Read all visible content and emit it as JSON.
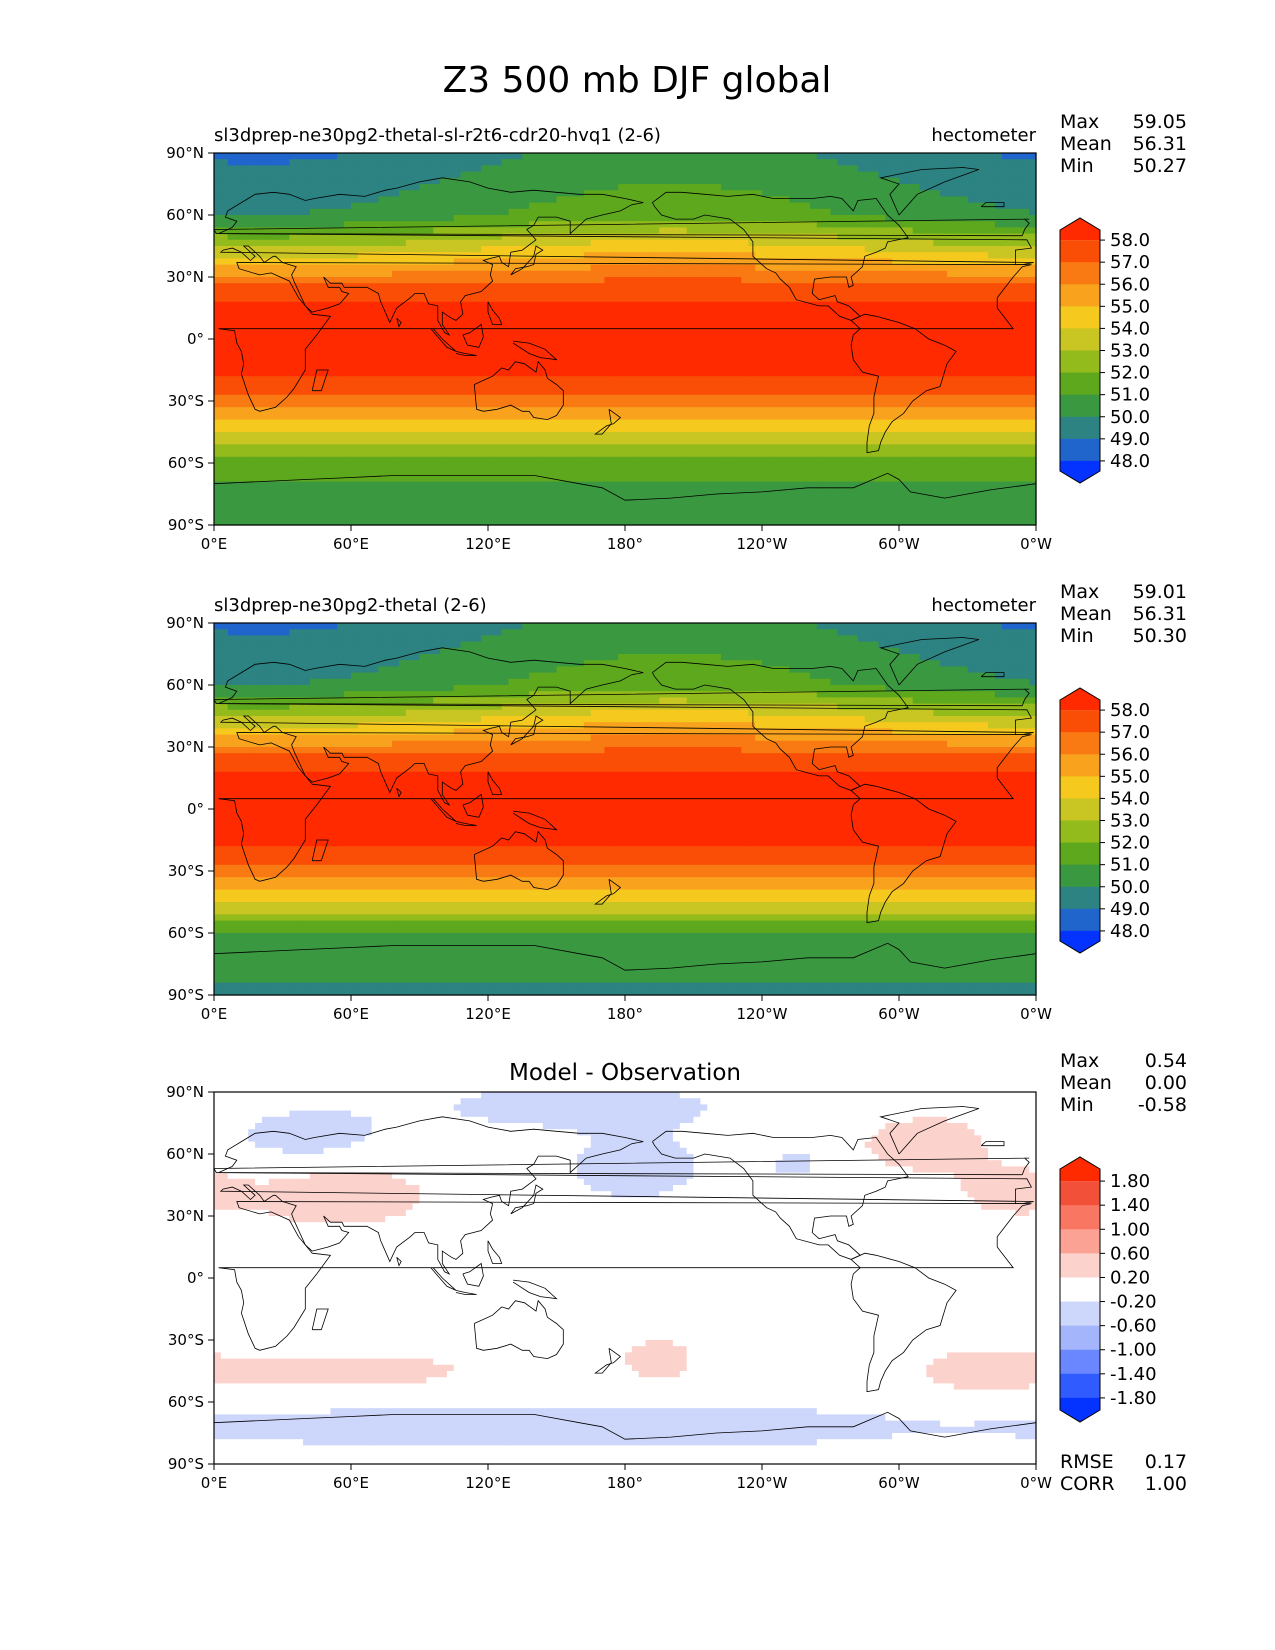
{
  "title": "Z3 500 mb DJF global",
  "colors": {
    "levels": [
      "#0433ff",
      "#1f65cc",
      "#2c8382",
      "#3a9840",
      "#5ea81e",
      "#92bb1b",
      "#c9c523",
      "#f5c91e",
      "#f8a21e",
      "#f97a12",
      "#fa4e06",
      "#ff2a00"
    ],
    "diff": [
      "#0433ff",
      "#2f5bff",
      "#6a87ff",
      "#a5b5fb",
      "#cdd6fb",
      "#ffffff",
      "#fcd2cd",
      "#fca295",
      "#f97663",
      "#f3503a",
      "#ff2a00"
    ],
    "land": "#000000"
  },
  "chart_data": [
    {
      "type": "heatmap",
      "name": "test",
      "label_left": "sl3dprep-ne30pg2-thetal-sl-r2t6-cdr20-hvq1 (2-6)",
      "label_right": "hectometer",
      "stats": [
        {
          "label": "Max",
          "value": "59.05"
        },
        {
          "label": "Mean",
          "value": "56.31"
        },
        {
          "label": "Min",
          "value": "50.27"
        }
      ],
      "colorbar_ticks": [
        "58.0",
        "57.0",
        "56.0",
        "55.0",
        "54.0",
        "53.0",
        "52.0",
        "51.0",
        "50.0",
        "49.0",
        "48.0"
      ],
      "levels": [
        48,
        49,
        50,
        51,
        52,
        53,
        54,
        55,
        56,
        57,
        58
      ],
      "x_ticks": [
        "0°E",
        "60°E",
        "120°E",
        "180°",
        "120°W",
        "60°W",
        "0°W"
      ],
      "y_ticks": [
        "90°N",
        "60°N",
        "30°N",
        "0°",
        "30°S",
        "60°S",
        "90°S"
      ],
      "xlim": [
        0,
        360
      ],
      "ylim": [
        -90,
        90
      ]
    },
    {
      "type": "heatmap",
      "name": "reference",
      "label_left": "sl3dprep-ne30pg2-thetal (2-6)",
      "label_right": "hectometer",
      "stats": [
        {
          "label": "Max",
          "value": "59.01"
        },
        {
          "label": "Mean",
          "value": "56.31"
        },
        {
          "label": "Min",
          "value": "50.30"
        }
      ],
      "colorbar_ticks": [
        "58.0",
        "57.0",
        "56.0",
        "55.0",
        "54.0",
        "53.0",
        "52.0",
        "51.0",
        "50.0",
        "49.0",
        "48.0"
      ],
      "levels": [
        48,
        49,
        50,
        51,
        52,
        53,
        54,
        55,
        56,
        57,
        58
      ],
      "x_ticks": [
        "0°E",
        "60°E",
        "120°E",
        "180°",
        "120°W",
        "60°W",
        "0°W"
      ],
      "y_ticks": [
        "90°N",
        "60°N",
        "30°N",
        "0°",
        "30°S",
        "60°S",
        "90°S"
      ],
      "xlim": [
        0,
        360
      ],
      "ylim": [
        -90,
        90
      ]
    },
    {
      "type": "heatmap",
      "name": "difference",
      "title": "Model - Observation",
      "stats": [
        {
          "label": "Max",
          "value": "0.54"
        },
        {
          "label": "Mean",
          "value": "0.00"
        },
        {
          "label": "Min",
          "value": "-0.58"
        }
      ],
      "colorbar_ticks": [
        "1.80",
        "1.40",
        "1.00",
        "0.60",
        "0.20",
        "-0.20",
        "-0.60",
        "-1.00",
        "-1.40",
        "-1.80"
      ],
      "levels": [
        -1.8,
        -1.4,
        -1.0,
        -0.6,
        -0.2,
        0.2,
        0.6,
        1.0,
        1.4,
        1.8
      ],
      "metrics": [
        {
          "label": "RMSE",
          "value": "0.17"
        },
        {
          "label": "CORR",
          "value": "1.00"
        }
      ],
      "x_ticks": [
        "0°E",
        "60°E",
        "120°E",
        "180°",
        "120°W",
        "60°W",
        "0°W"
      ],
      "y_ticks": [
        "90°N",
        "60°N",
        "30°N",
        "0°",
        "30°S",
        "60°S",
        "90°S"
      ],
      "xlim": [
        0,
        360
      ],
      "ylim": [
        -90,
        90
      ]
    }
  ]
}
